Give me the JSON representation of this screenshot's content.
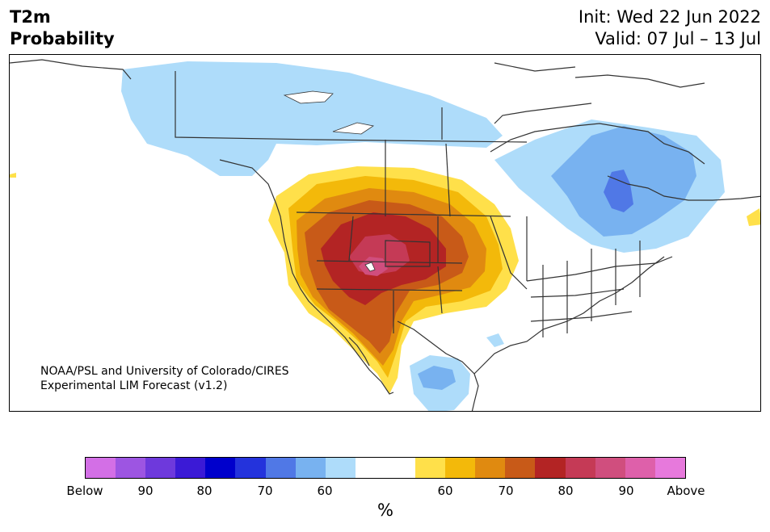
{
  "title": {
    "line1": "T2m",
    "line2": "Probability"
  },
  "info": {
    "init": "Init: Wed 22 Jun 2022",
    "valid": "Valid: 07 Jul – 13 Jul"
  },
  "credit": {
    "line1": "NOAA/PSL and University of Colorado/CIRES",
    "line2": "Experimental LIM Forecast (v1.2)"
  },
  "colorbar": {
    "colors": [
      "#d36fe6",
      "#9d55e2",
      "#6e39dc",
      "#3b1ad6",
      "#0000cc",
      "#2433dc",
      "#5078e6",
      "#78b2f0",
      "#aedcfa",
      "#ffffff",
      "#ffffff",
      "#ffe04a",
      "#f3b90a",
      "#e08a10",
      "#c85a18",
      "#b32424",
      "#c53a56",
      "#d04e7e",
      "#de60aa",
      "#e779dc"
    ],
    "tick_labels": [
      "Below",
      "90",
      "80",
      "70",
      "60",
      "60",
      "70",
      "80",
      "90",
      "Above"
    ],
    "unit": "%"
  }
}
